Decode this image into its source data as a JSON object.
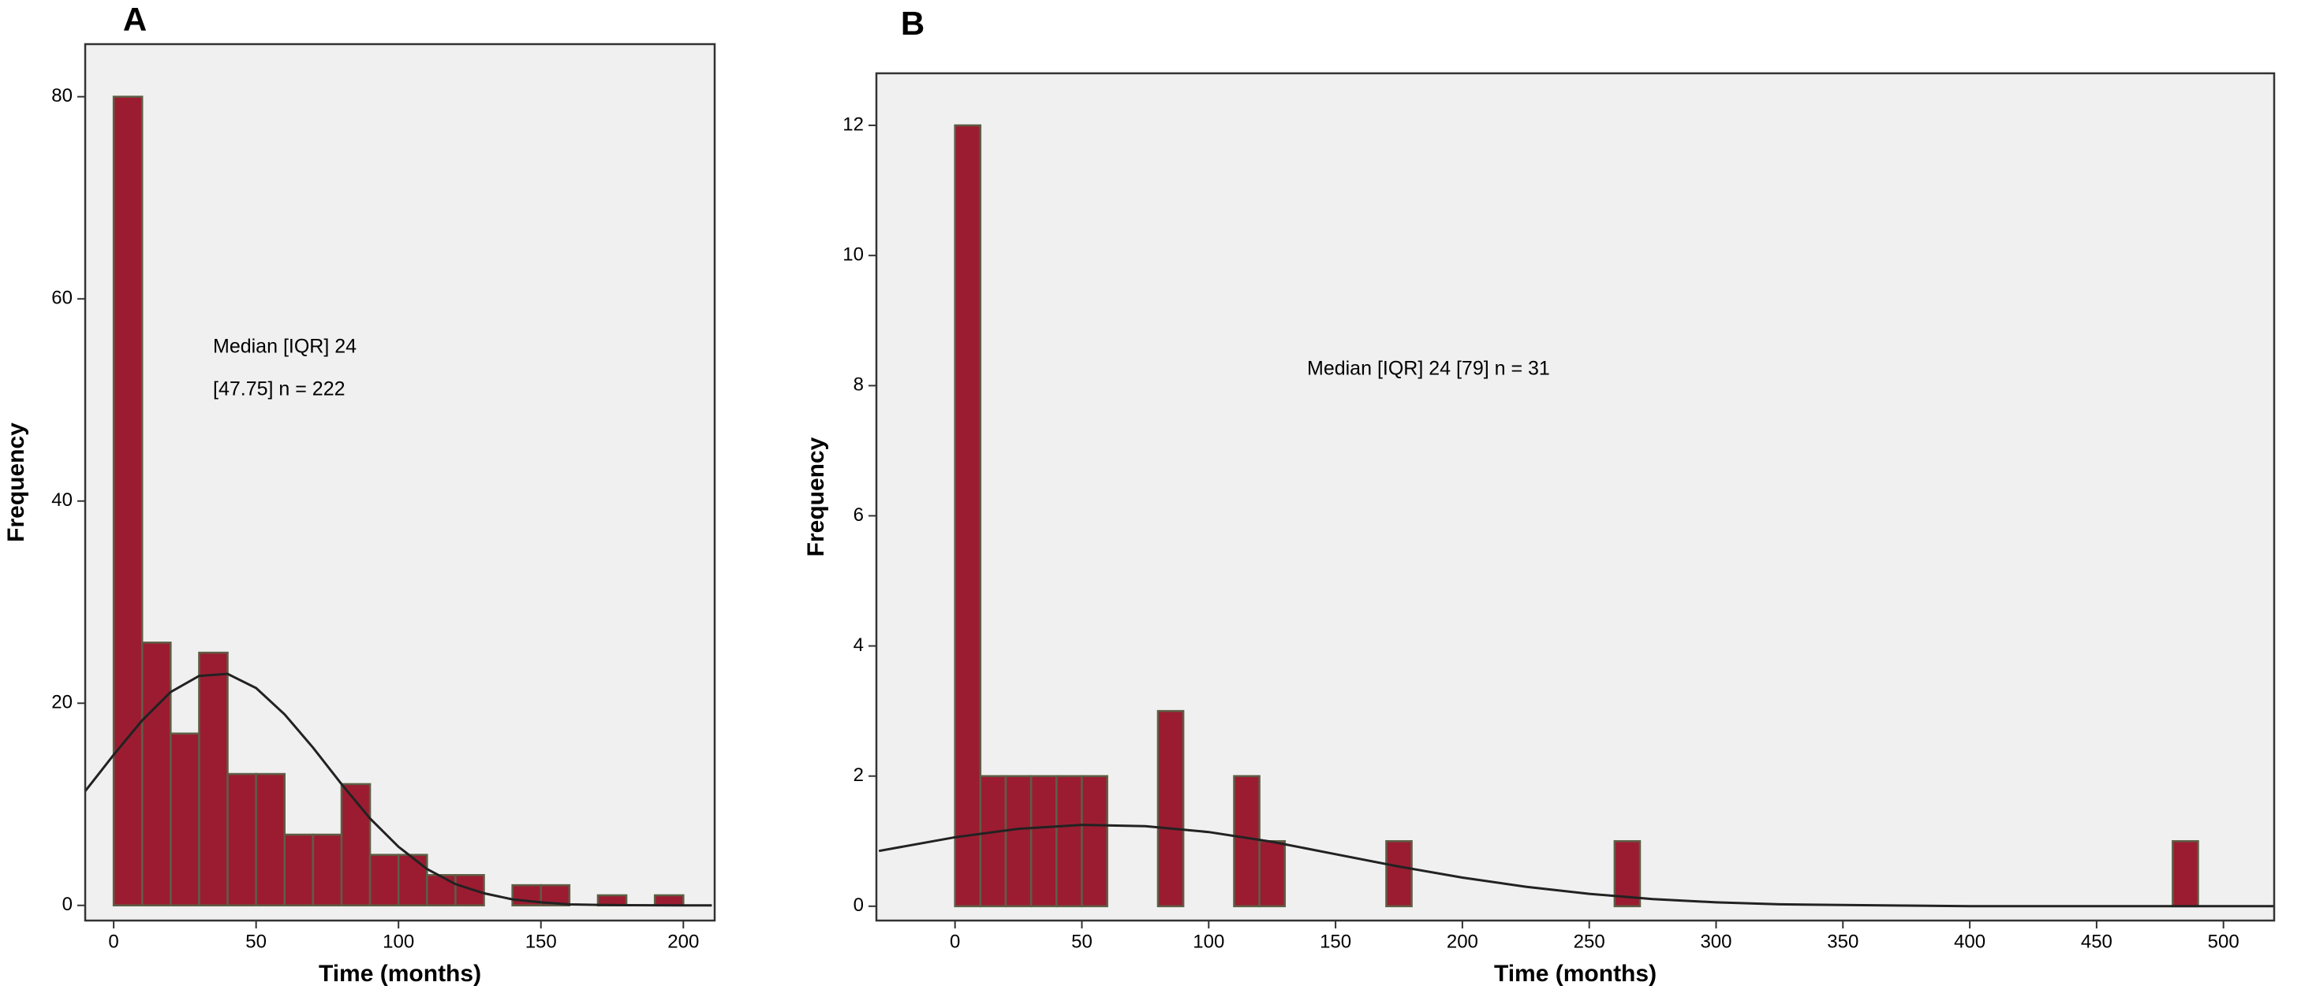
{
  "chart_data": [
    {
      "type": "histogram",
      "title": "A",
      "xlabel": "Time (months)",
      "ylabel": "Frequency",
      "annotations": [
        "Median [IQR] 24",
        "[47.75] n = 222"
      ],
      "bins": [
        0,
        10,
        20,
        30,
        40,
        50,
        60,
        70,
        80,
        90,
        100,
        110,
        120,
        130,
        140,
        150,
        160,
        170,
        180,
        190,
        200
      ],
      "counts": [
        80,
        26,
        17,
        25,
        13,
        13,
        7,
        7,
        12,
        5,
        5,
        3,
        3,
        0,
        2,
        2,
        0,
        1,
        0,
        1
      ],
      "color": "#9b1c31",
      "edgecolor": "#5e5e45",
      "background": "#f0f0f0",
      "xlim": [
        -10,
        211
      ],
      "ylim": [
        -1.5,
        85.2
      ],
      "xticks": [
        0,
        50,
        100,
        150,
        200
      ],
      "yticks": [
        0,
        20,
        40,
        60,
        80
      ],
      "curve": {
        "color": "#222222",
        "x": [
          -10,
          0,
          10,
          20,
          30,
          40,
          50,
          60,
          70,
          80,
          90,
          100,
          110,
          120,
          130,
          140,
          150,
          160,
          170,
          180,
          190,
          200,
          210
        ],
        "values": [
          11.3,
          14.9,
          18.3,
          21.1,
          22.7,
          22.9,
          21.5,
          18.9,
          15.6,
          12.0,
          8.6,
          5.8,
          3.6,
          2.1,
          1.2,
          0.6,
          0.3,
          0.1,
          0.05,
          0.02,
          0.01,
          0,
          0
        ]
      }
    },
    {
      "type": "histogram",
      "title": "B",
      "xlabel": "Time (months)",
      "ylabel": "Frequency",
      "annotations": [
        "Median [IQR] 24 [79] n = 31"
      ],
      "bins": [
        0,
        10,
        20,
        30,
        40,
        50,
        60,
        70,
        80,
        90,
        100,
        110,
        120,
        130,
        140,
        150,
        160,
        170,
        180,
        190,
        200,
        210,
        220,
        230,
        240,
        250,
        260,
        270,
        280,
        290,
        300,
        310,
        320,
        330,
        340,
        350,
        360,
        370,
        380,
        390,
        400,
        410,
        420,
        430,
        440,
        450,
        460,
        470,
        480,
        490
      ],
      "counts": [
        12,
        2,
        2,
        2,
        2,
        2,
        0,
        0,
        3,
        0,
        0,
        2,
        1,
        0,
        0,
        0,
        0,
        1,
        0,
        0,
        0,
        0,
        0,
        0,
        0,
        0,
        1,
        0,
        0,
        0,
        0,
        0,
        0,
        0,
        0,
        0,
        0,
        0,
        0,
        0,
        0,
        0,
        0,
        0,
        0,
        0,
        0,
        0,
        1
      ],
      "color": "#9b1c31",
      "edgecolor": "#5e5e45",
      "background": "#f0f0f0",
      "xlim": [
        -31,
        520
      ],
      "ylim": [
        -0.22,
        12.8
      ],
      "xticks": [
        0,
        50,
        100,
        150,
        200,
        250,
        300,
        350,
        400,
        450,
        500
      ],
      "yticks": [
        0,
        2,
        4,
        6,
        8,
        10,
        12
      ],
      "curve": {
        "color": "#222222",
        "x": [
          -30,
          0,
          25,
          50,
          75,
          100,
          125,
          150,
          175,
          200,
          225,
          250,
          275,
          300,
          325,
          350,
          375,
          400,
          450,
          500,
          520
        ],
        "values": [
          0.85,
          1.06,
          1.19,
          1.25,
          1.23,
          1.14,
          0.99,
          0.8,
          0.61,
          0.44,
          0.3,
          0.19,
          0.11,
          0.06,
          0.03,
          0.02,
          0.01,
          0,
          0,
          0,
          0
        ]
      }
    }
  ]
}
